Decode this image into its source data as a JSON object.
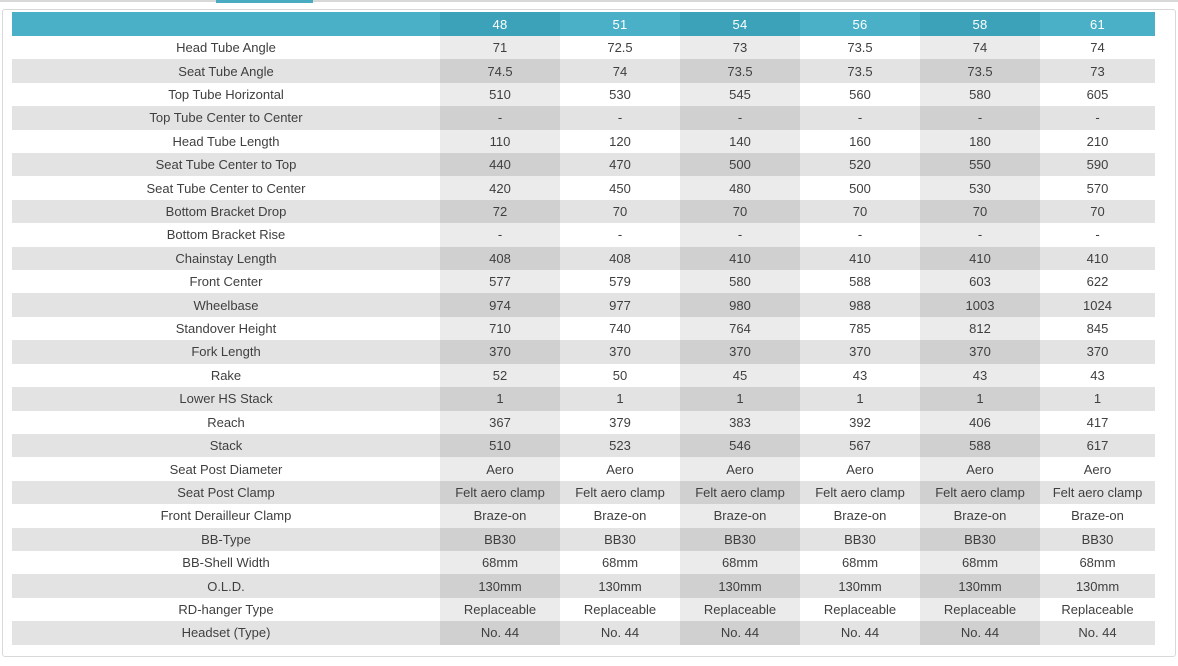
{
  "colors": {
    "header_teal_light": "#4ab0c7",
    "header_teal_dark": "#3ba2ba",
    "tab_indicator": "#49abc2",
    "panel_border": "#d9d9d9",
    "row_gray": "#e3e3e3",
    "column_shade_on_white": "#ebebeb",
    "column_shade_on_gray": "#d0d0d0",
    "text": "#3f3f3f"
  },
  "table": {
    "header": {
      "label": "",
      "sizes": [
        "48",
        "51",
        "54",
        "56",
        "58",
        "61"
      ]
    },
    "rows": [
      {
        "label": "Head Tube Angle",
        "values": [
          "71",
          "72.5",
          "73",
          "73.5",
          "74",
          "74"
        ]
      },
      {
        "label": "Seat Tube Angle",
        "values": [
          "74.5",
          "74",
          "73.5",
          "73.5",
          "73.5",
          "73"
        ]
      },
      {
        "label": "Top Tube Horizontal",
        "values": [
          "510",
          "530",
          "545",
          "560",
          "580",
          "605"
        ]
      },
      {
        "label": "Top Tube Center to Center",
        "values": [
          "-",
          "-",
          "-",
          "-",
          "-",
          "-"
        ]
      },
      {
        "label": "Head Tube Length",
        "values": [
          "110",
          "120",
          "140",
          "160",
          "180",
          "210"
        ]
      },
      {
        "label": "Seat Tube Center to Top",
        "values": [
          "440",
          "470",
          "500",
          "520",
          "550",
          "590"
        ]
      },
      {
        "label": "Seat Tube Center to Center",
        "values": [
          "420",
          "450",
          "480",
          "500",
          "530",
          "570"
        ]
      },
      {
        "label": "Bottom Bracket Drop",
        "values": [
          "72",
          "70",
          "70",
          "70",
          "70",
          "70"
        ]
      },
      {
        "label": "Bottom Bracket Rise",
        "values": [
          "-",
          "-",
          "-",
          "-",
          "-",
          "-"
        ]
      },
      {
        "label": "Chainstay Length",
        "values": [
          "408",
          "408",
          "410",
          "410",
          "410",
          "410"
        ]
      },
      {
        "label": "Front Center",
        "values": [
          "577",
          "579",
          "580",
          "588",
          "603",
          "622"
        ]
      },
      {
        "label": "Wheelbase",
        "values": [
          "974",
          "977",
          "980",
          "988",
          "1003",
          "1024"
        ]
      },
      {
        "label": "Standover Height",
        "values": [
          "710",
          "740",
          "764",
          "785",
          "812",
          "845"
        ]
      },
      {
        "label": "Fork Length",
        "values": [
          "370",
          "370",
          "370",
          "370",
          "370",
          "370"
        ]
      },
      {
        "label": "Rake",
        "values": [
          "52",
          "50",
          "45",
          "43",
          "43",
          "43"
        ]
      },
      {
        "label": "Lower HS Stack",
        "values": [
          "1",
          "1",
          "1",
          "1",
          "1",
          "1"
        ]
      },
      {
        "label": "Reach",
        "values": [
          "367",
          "379",
          "383",
          "392",
          "406",
          "417"
        ]
      },
      {
        "label": "Stack",
        "values": [
          "510",
          "523",
          "546",
          "567",
          "588",
          "617"
        ]
      },
      {
        "label": "Seat Post Diameter",
        "values": [
          "Aero",
          "Aero",
          "Aero",
          "Aero",
          "Aero",
          "Aero"
        ]
      },
      {
        "label": "Seat Post Clamp",
        "values": [
          "Felt aero clamp",
          "Felt aero clamp",
          "Felt aero clamp",
          "Felt aero clamp",
          "Felt aero clamp",
          "Felt aero clamp"
        ]
      },
      {
        "label": "Front Derailleur Clamp",
        "values": [
          "Braze-on",
          "Braze-on",
          "Braze-on",
          "Braze-on",
          "Braze-on",
          "Braze-on"
        ]
      },
      {
        "label": "BB-Type",
        "values": [
          "BB30",
          "BB30",
          "BB30",
          "BB30",
          "BB30",
          "BB30"
        ]
      },
      {
        "label": "BB-Shell Width",
        "values": [
          "68mm",
          "68mm",
          "68mm",
          "68mm",
          "68mm",
          "68mm"
        ]
      },
      {
        "label": "O.L.D.",
        "values": [
          "130mm",
          "130mm",
          "130mm",
          "130mm",
          "130mm",
          "130mm"
        ]
      },
      {
        "label": "RD-hanger Type",
        "values": [
          "Replaceable",
          "Replaceable",
          "Replaceable",
          "Replaceable",
          "Replaceable",
          "Replaceable"
        ]
      },
      {
        "label": "Headset (Type)",
        "values": [
          "No. 44",
          "No. 44",
          "No. 44",
          "No. 44",
          "No. 44",
          "No. 44"
        ]
      }
    ]
  }
}
